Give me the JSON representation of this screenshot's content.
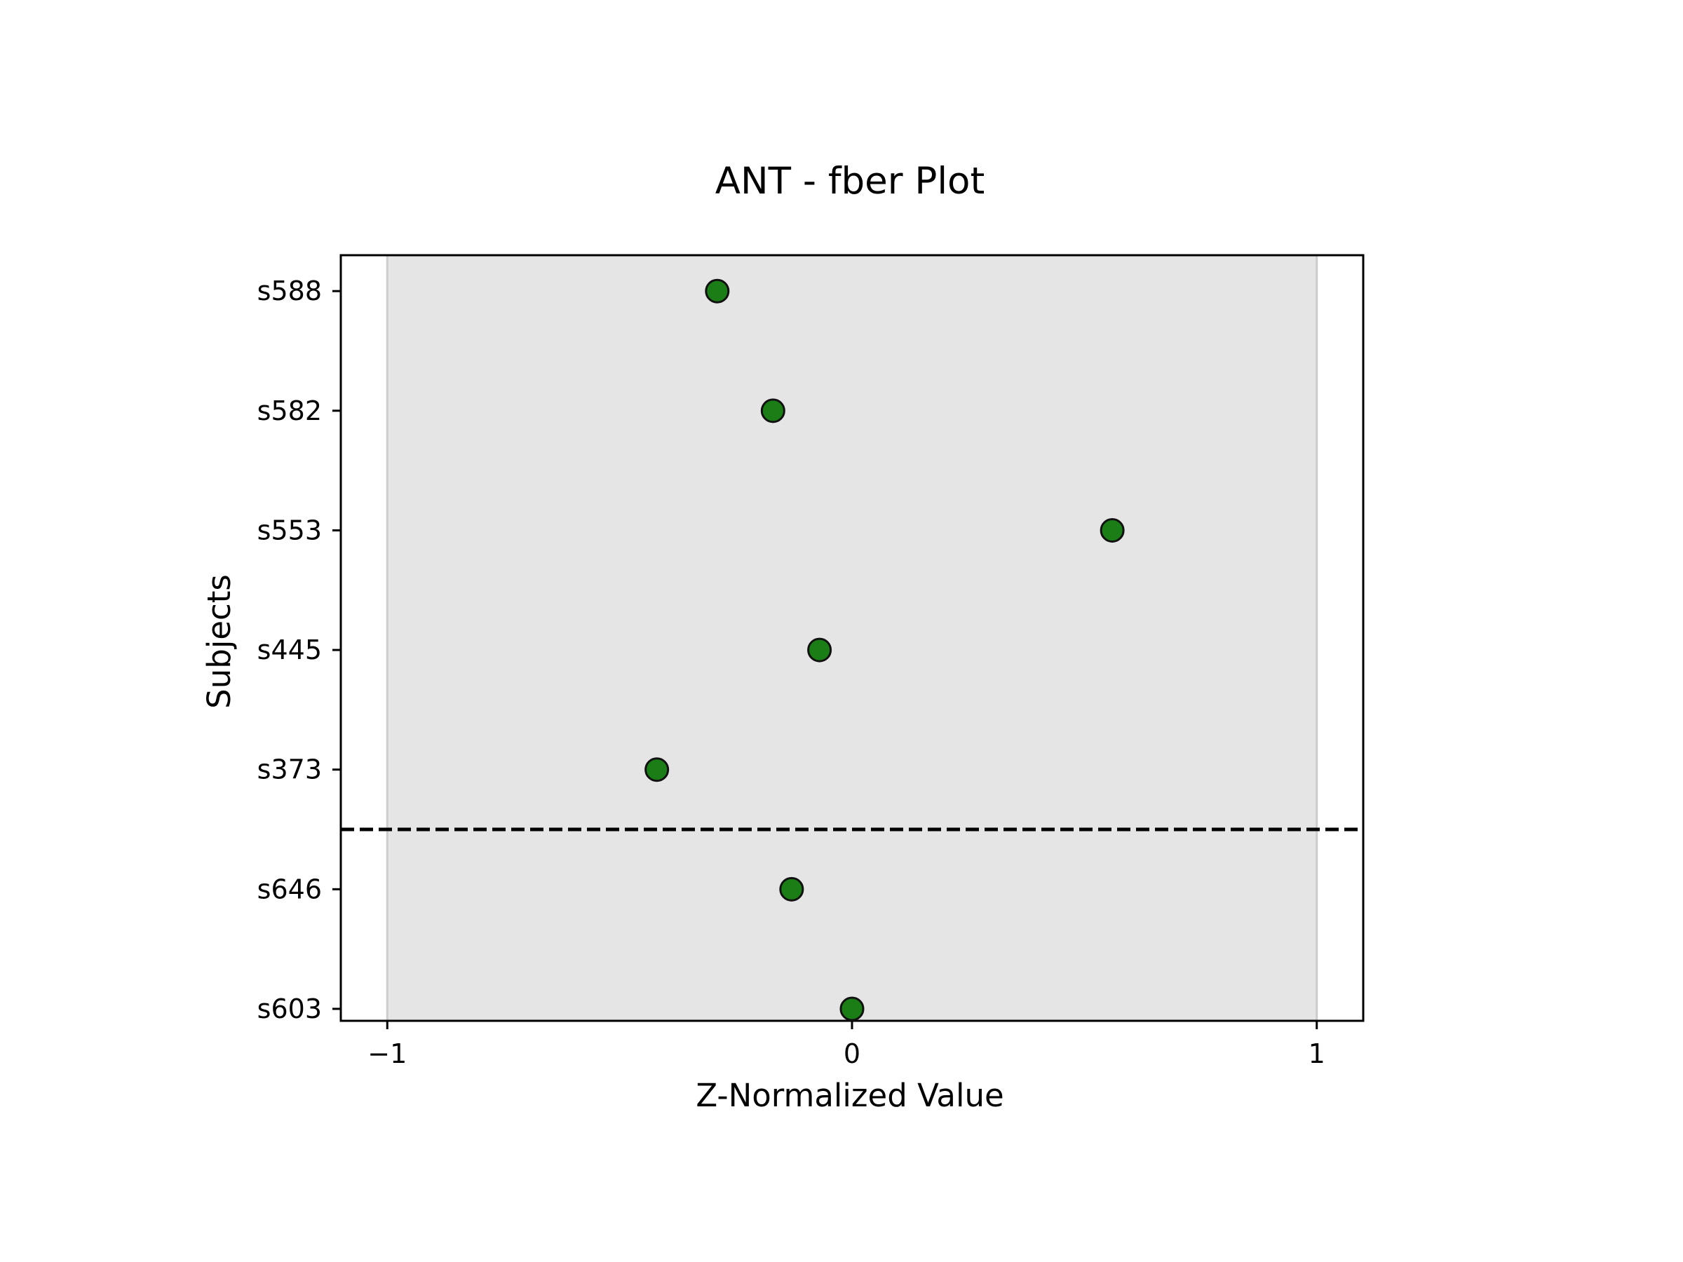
{
  "chart_data": {
    "type": "scatter",
    "title": "ANT - fber Plot",
    "xlabel": "Z-Normalized Value",
    "ylabel": "Subjects",
    "xlim": [
      -1.1,
      1.1
    ],
    "x_ticks": [
      -1,
      0,
      1
    ],
    "x_tick_labels": [
      "−1",
      "0",
      "1"
    ],
    "shaded_band": {
      "x0": -1,
      "x1": 1,
      "color": "#e5e5e5",
      "edge_color": "#cccccc"
    },
    "separator": {
      "between": [
        "s373",
        "s646"
      ],
      "style": "dashed",
      "color": "#000000"
    },
    "grid": false,
    "legend": "none",
    "marker_color": "#1a7d15",
    "marker_edge_color": "#111111",
    "points": [
      {
        "subject": "s588",
        "x": -0.29
      },
      {
        "subject": "s582",
        "x": -0.17
      },
      {
        "subject": "s553",
        "x": 0.56
      },
      {
        "subject": "s445",
        "x": -0.07
      },
      {
        "subject": "s373",
        "x": -0.42
      },
      {
        "subject": "s646",
        "x": -0.13
      },
      {
        "subject": "s603",
        "x": 0.0
      }
    ]
  }
}
